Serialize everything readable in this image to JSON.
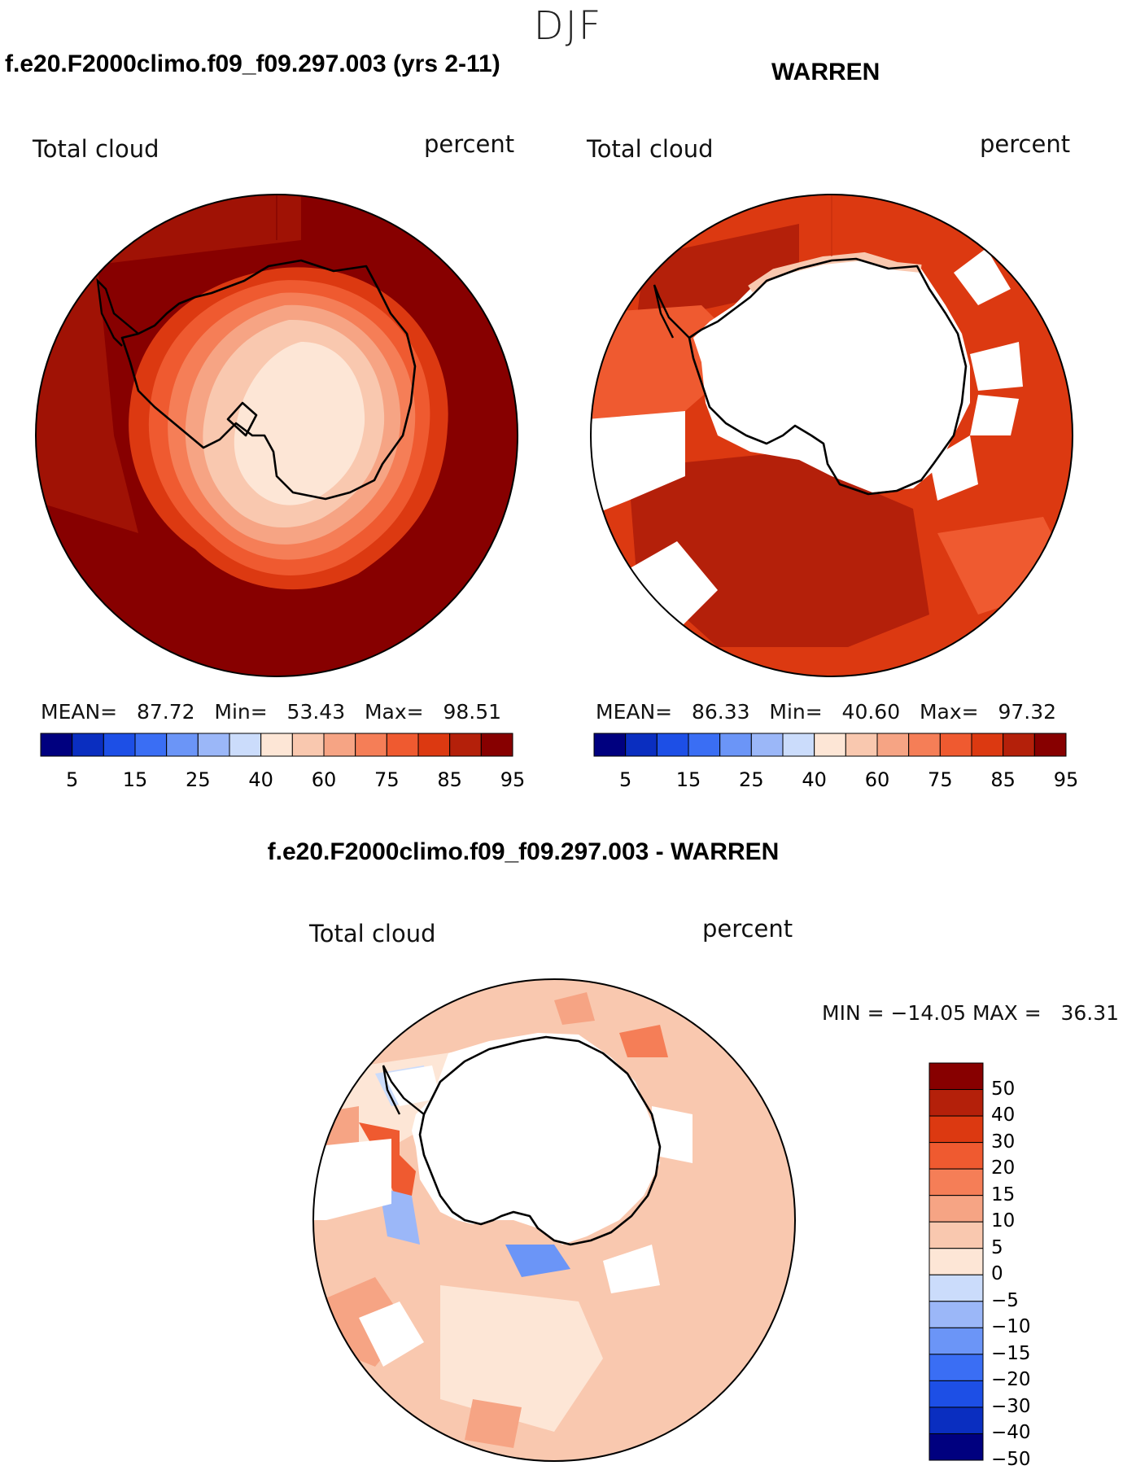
{
  "header": {
    "season": "DJF"
  },
  "panel_left": {
    "case_title": "f.e20.F2000climo.f09_f09.297.003 (yrs 2-11)",
    "variable": "Total cloud",
    "units": "percent",
    "stats": {
      "mean_label": "MEAN=",
      "mean": "87.72",
      "min_label": "Min=",
      "min": "53.43",
      "max_label": "Max=",
      "max": "98.51"
    }
  },
  "panel_right": {
    "case_title": "WARREN",
    "variable": "Total cloud",
    "units": "percent",
    "stats": {
      "mean_label": "MEAN=",
      "mean": "86.33",
      "min_label": "Min=",
      "min": "40.60",
      "max_label": "Max=",
      "max": "97.32"
    }
  },
  "panel_diff": {
    "case_title": "f.e20.F2000climo.f09_f09.297.003 - WARREN",
    "variable": "Total cloud",
    "units": "percent",
    "minmax_text": "MIN = −14.05 MAX =   36.31"
  },
  "colorbar_abs": {
    "colors": [
      "#00007f",
      "#0a2ec0",
      "#1d4fe6",
      "#3a6ef4",
      "#6b95f7",
      "#9bb7f8",
      "#cbdcfb",
      "#fde6d6",
      "#f9c8af",
      "#f6a484",
      "#f57e57",
      "#ef5a30",
      "#dc3911",
      "#b4200a",
      "#870000"
    ],
    "tick_labels": [
      "5",
      "15",
      "25",
      "40",
      "60",
      "75",
      "85",
      "95"
    ]
  },
  "colorbar_diff": {
    "colors": [
      "#870000",
      "#b4200a",
      "#dc3911",
      "#ef5a30",
      "#f57e57",
      "#f6a484",
      "#f9c8af",
      "#fde6d6",
      "#cbdcfb",
      "#9bb7f8",
      "#6b95f7",
      "#3a6ef4",
      "#1d4fe6",
      "#0a2ec0",
      "#00007f"
    ],
    "tick_labels": [
      "50",
      "40",
      "30",
      "20",
      "15",
      "10",
      "5",
      "0",
      "−5",
      "−10",
      "−15",
      "−20",
      "−30",
      "−40",
      "−50"
    ]
  },
  "map_colors": {
    "ocean_left": "#870000",
    "ocean_right": "#dc3911",
    "ocean_diff": "#f9c8af",
    "coast": "#000000",
    "missing": "#ffffff"
  }
}
